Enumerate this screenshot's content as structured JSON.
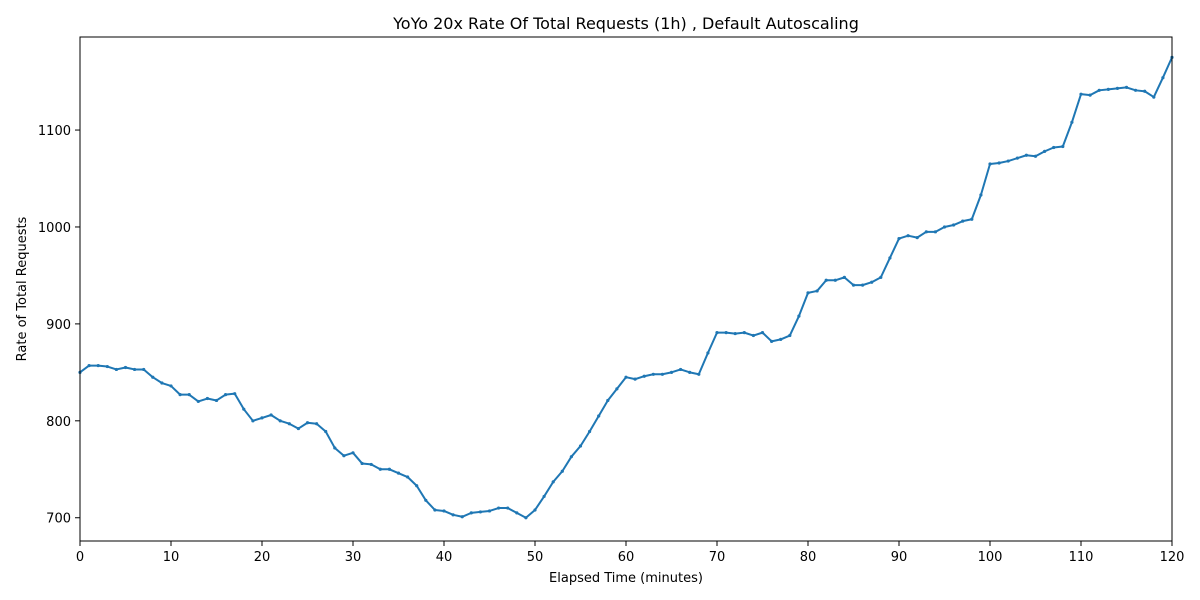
{
  "chart_data": {
    "type": "line",
    "title": "YoYo 20x Rate Of Total Requests (1h) , Default Autoscaling",
    "xlabel": "Elapsed Time (minutes)",
    "ylabel": "Rate of Total Requests",
    "xlim": [
      0,
      120
    ],
    "ylim": [
      676,
      1196
    ],
    "xticks": [
      0,
      10,
      20,
      30,
      40,
      50,
      60,
      70,
      80,
      90,
      100,
      110,
      120
    ],
    "yticks": [
      700,
      800,
      900,
      1000,
      1100
    ],
    "grid": false,
    "line_color": "#1f77b4",
    "marker": "dot",
    "series": [
      {
        "x": [
          0,
          1,
          2,
          3,
          4,
          5,
          6,
          7,
          8,
          9,
          10,
          11,
          12,
          13,
          14,
          15,
          16,
          17,
          18,
          19,
          20,
          21,
          22,
          23,
          24,
          25,
          26,
          27,
          28,
          29,
          30,
          31,
          32,
          33,
          34,
          35,
          36,
          37,
          38,
          39,
          40,
          41,
          42,
          43,
          44,
          45,
          46,
          47,
          48,
          49,
          50,
          51,
          52,
          53,
          54,
          55,
          56,
          57,
          58,
          59,
          60,
          61,
          62,
          63,
          64,
          65,
          66,
          67,
          68,
          69,
          70,
          71,
          72,
          73,
          74,
          75,
          76,
          77,
          78,
          79,
          80,
          81,
          82,
          83,
          84,
          85,
          86,
          87,
          88,
          89,
          90,
          91,
          92,
          93,
          94,
          95,
          96,
          97,
          98,
          99,
          100,
          101,
          102,
          103,
          104,
          105,
          106,
          107,
          108,
          109,
          110,
          111,
          112,
          113,
          114,
          115,
          116,
          117,
          118,
          119,
          120
        ],
        "y": [
          850,
          857,
          857,
          856,
          853,
          855,
          853,
          853,
          845,
          839,
          836,
          827,
          827,
          820,
          823,
          821,
          827,
          828,
          812,
          800,
          803,
          806,
          800,
          797,
          792,
          798,
          797,
          789,
          772,
          764,
          767,
          756,
          755,
          750,
          750,
          746,
          742,
          733,
          718,
          708,
          707,
          703,
          701,
          705,
          706,
          707,
          710,
          710,
          705,
          700,
          708,
          722,
          737,
          748,
          763,
          774,
          789,
          805,
          821,
          833,
          845,
          843,
          846,
          848,
          848,
          850,
          853,
          850,
          848,
          870,
          891,
          891,
          890,
          891,
          888,
          891,
          882,
          884,
          888,
          908,
          932,
          934,
          945,
          945,
          948,
          940,
          940,
          943,
          948,
          968,
          988,
          991,
          989,
          995,
          995,
          1000,
          1002,
          1006,
          1008,
          1033,
          1065,
          1066,
          1068,
          1071,
          1074,
          1073,
          1078,
          1082,
          1083,
          1108,
          1137,
          1136,
          1141,
          1142,
          1143,
          1144,
          1141,
          1140,
          1134,
          1154,
          1175
        ]
      }
    ]
  }
}
